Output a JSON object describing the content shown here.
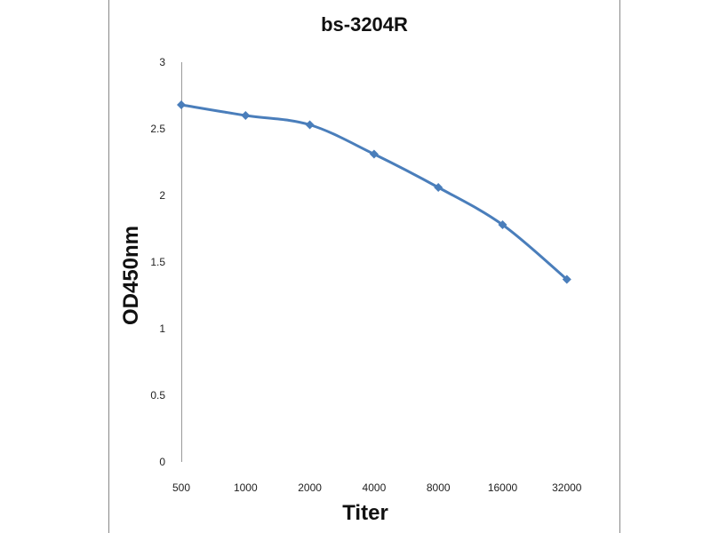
{
  "chart_data": {
    "type": "line",
    "title": "bs-3204R",
    "xlabel": "Titer",
    "ylabel": "OD450nm",
    "categories": [
      "500",
      "1000",
      "2000",
      "4000",
      "8000",
      "16000",
      "32000"
    ],
    "series": [
      {
        "values": [
          2.68,
          2.6,
          2.53,
          2.31,
          2.06,
          1.78,
          1.37
        ]
      }
    ],
    "ylim": [
      0,
      3
    ],
    "yticks": [
      "0",
      "0.5",
      "1",
      "1.5",
      "2",
      "2.5",
      "3"
    ],
    "grid": false,
    "legend": "none",
    "line_color": "#4a7ebb"
  }
}
